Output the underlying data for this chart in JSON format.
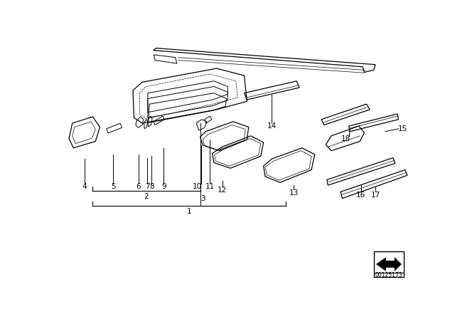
{
  "bg_color": "#ffffff",
  "part_number": "00125173",
  "fig_width": 6.4,
  "fig_height": 4.48,
  "line_color": "#000000"
}
